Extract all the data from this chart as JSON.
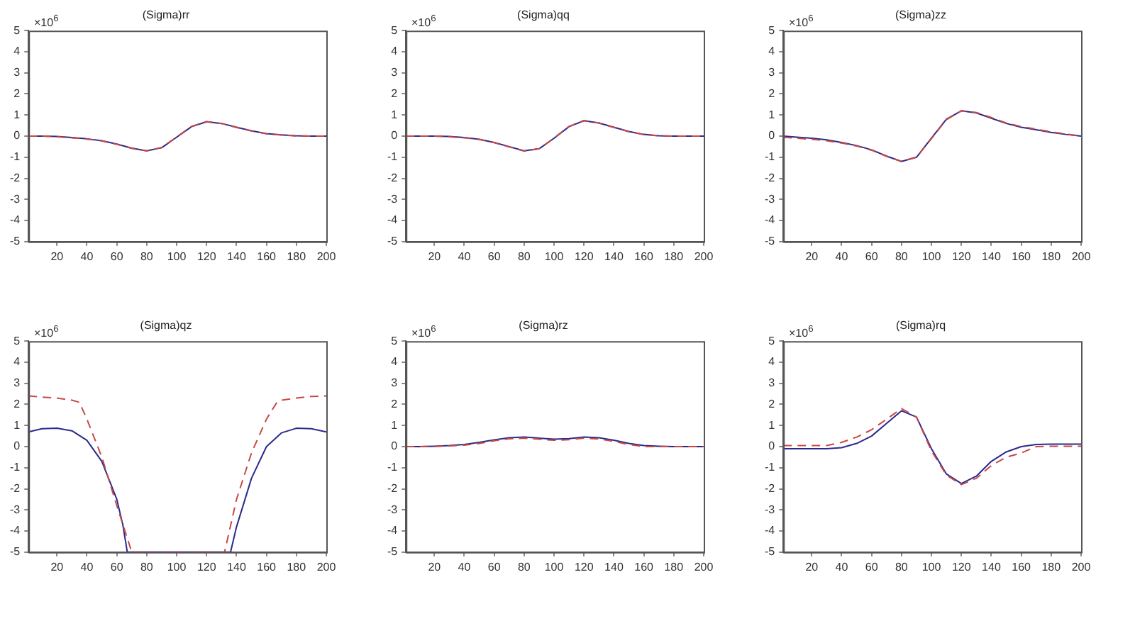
{
  "chart_data": [
    {
      "type": "line",
      "title": "(Sigma)rr",
      "annotations": [
        "×10$^{6}$"
      ],
      "xlim": [
        1,
        200
      ],
      "xticks": [
        20,
        40,
        60,
        80,
        100,
        120,
        140,
        160,
        180,
        200
      ],
      "ylim": [
        -5,
        5
      ],
      "yticks": [
        -5,
        -4,
        -3,
        -2,
        -1,
        0,
        1,
        2,
        3,
        4,
        5
      ],
      "grid": false,
      "legend": false,
      "marker": "none",
      "x": [
        1,
        10,
        20,
        30,
        40,
        50,
        60,
        70,
        80,
        90,
        100,
        110,
        120,
        130,
        140,
        150,
        160,
        170,
        180,
        190,
        200
      ],
      "series": [
        {
          "color": "#2a2a8c",
          "line_style": "solid",
          "values": [
            0,
            0,
            -0.02,
            -0.07,
            -0.13,
            -0.22,
            -0.38,
            -0.57,
            -0.7,
            -0.55,
            -0.05,
            0.45,
            0.68,
            0.6,
            0.42,
            0.25,
            0.12,
            0.06,
            0.02,
            0,
            0
          ]
        },
        {
          "color": "#c84848",
          "line_style": "dashed",
          "values": [
            0,
            0,
            -0.03,
            -0.08,
            -0.14,
            -0.23,
            -0.39,
            -0.58,
            -0.7,
            -0.54,
            -0.04,
            0.46,
            0.69,
            0.6,
            0.41,
            0.24,
            0.11,
            0.05,
            0.01,
            0,
            0
          ]
        }
      ]
    },
    {
      "type": "line",
      "title": "(Sigma)qq",
      "annotations": [
        "×10$^{6}$"
      ],
      "xlim": [
        1,
        200
      ],
      "xticks": [
        20,
        40,
        60,
        80,
        100,
        120,
        140,
        160,
        180,
        200
      ],
      "ylim": [
        -5,
        5
      ],
      "yticks": [
        -5,
        -4,
        -3,
        -2,
        -1,
        0,
        1,
        2,
        3,
        4,
        5
      ],
      "grid": false,
      "legend": false,
      "marker": "none",
      "x": [
        1,
        10,
        20,
        30,
        40,
        50,
        60,
        70,
        80,
        90,
        100,
        110,
        120,
        130,
        140,
        150,
        160,
        170,
        180,
        190,
        200
      ],
      "series": [
        {
          "color": "#2a2a8c",
          "line_style": "solid",
          "values": [
            0,
            0,
            0,
            -0.02,
            -0.07,
            -0.15,
            -0.3,
            -0.5,
            -0.7,
            -0.6,
            -0.1,
            0.45,
            0.73,
            0.62,
            0.42,
            0.22,
            0.08,
            0.02,
            0,
            0,
            0
          ]
        },
        {
          "color": "#c84848",
          "line_style": "dashed",
          "values": [
            0,
            0,
            0,
            -0.03,
            -0.08,
            -0.16,
            -0.31,
            -0.51,
            -0.71,
            -0.6,
            -0.09,
            0.46,
            0.74,
            0.62,
            0.41,
            0.21,
            0.07,
            0.01,
            0,
            0,
            0
          ]
        }
      ]
    },
    {
      "type": "line",
      "title": "(Sigma)zz",
      "annotations": [
        "×10$^{6}$"
      ],
      "xlim": [
        1,
        200
      ],
      "xticks": [
        20,
        40,
        60,
        80,
        100,
        120,
        140,
        160,
        180,
        200
      ],
      "ylim": [
        -5,
        5
      ],
      "yticks": [
        -5,
        -4,
        -3,
        -2,
        -1,
        0,
        1,
        2,
        3,
        4,
        5
      ],
      "grid": false,
      "legend": false,
      "marker": "none",
      "x": [
        1,
        10,
        20,
        30,
        40,
        50,
        60,
        70,
        80,
        90,
        100,
        110,
        120,
        130,
        140,
        150,
        160,
        170,
        180,
        190,
        200
      ],
      "series": [
        {
          "color": "#2a2a8c",
          "line_style": "solid",
          "values": [
            0,
            -0.05,
            -0.1,
            -0.18,
            -0.3,
            -0.45,
            -0.65,
            -0.95,
            -1.2,
            -1.0,
            -0.1,
            0.8,
            1.2,
            1.1,
            0.85,
            0.6,
            0.42,
            0.3,
            0.18,
            0.08,
            0
          ]
        },
        {
          "color": "#c84848",
          "line_style": "dashed",
          "values": [
            -0.05,
            -0.1,
            -0.15,
            -0.22,
            -0.33,
            -0.47,
            -0.67,
            -0.96,
            -1.2,
            -1.0,
            -0.12,
            0.78,
            1.2,
            1.12,
            0.88,
            0.62,
            0.45,
            0.33,
            0.2,
            0.1,
            0
          ]
        }
      ]
    },
    {
      "type": "line",
      "title": "(Sigma)qz",
      "annotations": [
        "×10$^{6}$"
      ],
      "xlim": [
        1,
        200
      ],
      "xticks": [
        20,
        40,
        60,
        80,
        100,
        120,
        140,
        160,
        180,
        200
      ],
      "ylim": [
        -5,
        5
      ],
      "yticks": [
        -5,
        -4,
        -3,
        -2,
        -1,
        0,
        1,
        2,
        3,
        4,
        5
      ],
      "grid": false,
      "legend": false,
      "marker": "none",
      "series": [
        {
          "color": "#2a2a8c",
          "line_style": "solid",
          "x": [
            1,
            10,
            20,
            30,
            40,
            50,
            60,
            64,
            67,
            136,
            140,
            150,
            160,
            170,
            180,
            190,
            200
          ],
          "values": [
            0.7,
            0.85,
            0.87,
            0.75,
            0.3,
            -0.7,
            -2.5,
            -3.7,
            -5,
            -5,
            -3.8,
            -1.5,
            0,
            0.65,
            0.87,
            0.85,
            0.7
          ]
        },
        {
          "color": "#c84848",
          "line_style": "dashed",
          "x": [
            1,
            10,
            20,
            30,
            35,
            40,
            50,
            60,
            65,
            70,
            132,
            140,
            150,
            160,
            167,
            170,
            180,
            190,
            200
          ],
          "values": [
            2.4,
            2.35,
            2.3,
            2.2,
            2.1,
            1.3,
            -0.5,
            -2.8,
            -3.9,
            -5,
            -5,
            -2.5,
            -0.3,
            1.3,
            2.1,
            2.2,
            2.3,
            2.38,
            2.4
          ]
        }
      ]
    },
    {
      "type": "line",
      "title": "(Sigma)rz",
      "annotations": [
        "×10$^{6}$"
      ],
      "xlim": [
        1,
        200
      ],
      "xticks": [
        20,
        40,
        60,
        80,
        100,
        120,
        140,
        160,
        180,
        200
      ],
      "ylim": [
        -5,
        5
      ],
      "yticks": [
        -5,
        -4,
        -3,
        -2,
        -1,
        0,
        1,
        2,
        3,
        4,
        5
      ],
      "grid": false,
      "legend": false,
      "marker": "none",
      "x": [
        1,
        10,
        20,
        30,
        40,
        50,
        60,
        70,
        80,
        90,
        100,
        110,
        120,
        130,
        140,
        150,
        160,
        170,
        180,
        190,
        200
      ],
      "series": [
        {
          "color": "#2a2a8c",
          "line_style": "solid",
          "values": [
            0,
            0,
            0.02,
            0.05,
            0.1,
            0.2,
            0.32,
            0.42,
            0.45,
            0.4,
            0.35,
            0.38,
            0.45,
            0.42,
            0.3,
            0.15,
            0.05,
            0.02,
            0,
            0,
            0
          ]
        },
        {
          "color": "#c84848",
          "line_style": "dashed",
          "values": [
            0,
            0,
            0.01,
            0.03,
            0.07,
            0.15,
            0.28,
            0.37,
            0.4,
            0.35,
            0.3,
            0.33,
            0.4,
            0.36,
            0.25,
            0.1,
            0,
            0,
            0,
            0,
            0
          ]
        }
      ]
    },
    {
      "type": "line",
      "title": "(Sigma)rq",
      "annotations": [
        "×10$^{6}$"
      ],
      "xlim": [
        1,
        200
      ],
      "xticks": [
        20,
        40,
        60,
        80,
        100,
        120,
        140,
        160,
        180,
        200
      ],
      "ylim": [
        -5,
        5
      ],
      "yticks": [
        -5,
        -4,
        -3,
        -2,
        -1,
        0,
        1,
        2,
        3,
        4,
        5
      ],
      "grid": false,
      "legend": false,
      "marker": "none",
      "x": [
        1,
        10,
        20,
        30,
        40,
        50,
        60,
        70,
        80,
        90,
        100,
        110,
        120,
        130,
        140,
        150,
        160,
        170,
        180,
        190,
        200
      ],
      "series": [
        {
          "color": "#2a2a8c",
          "line_style": "solid",
          "values": [
            -0.1,
            -0.1,
            -0.1,
            -0.1,
            -0.05,
            0.15,
            0.5,
            1.1,
            1.7,
            1.4,
            -0.1,
            -1.3,
            -1.75,
            -1.4,
            -0.7,
            -0.25,
            0,
            0.1,
            0.12,
            0.12,
            0.12
          ]
        },
        {
          "color": "#c84848",
          "line_style": "dashed",
          "values": [
            0.05,
            0.05,
            0.05,
            0.05,
            0.2,
            0.45,
            0.8,
            1.3,
            1.8,
            1.4,
            -0.2,
            -1.35,
            -1.8,
            -1.5,
            -0.9,
            -0.5,
            -0.3,
            0,
            0.02,
            0.02,
            0.02
          ]
        }
      ]
    }
  ]
}
